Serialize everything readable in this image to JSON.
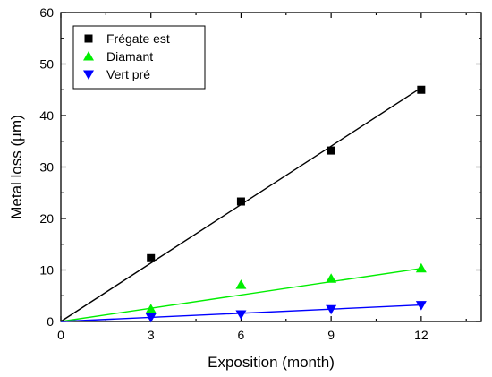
{
  "chart_data": {
    "type": "scatter",
    "title": "",
    "xlabel": "Exposition (month)",
    "ylabel": "Metal loss (µm)",
    "xlim": [
      0,
      14
    ],
    "ylim": [
      0,
      60
    ],
    "xticks": [
      0,
      3,
      6,
      9,
      12
    ],
    "yticks": [
      0,
      10,
      20,
      30,
      40,
      50,
      60
    ],
    "grid": false,
    "legend_position": "top-left",
    "series": [
      {
        "name": "Frégate est",
        "marker": "square",
        "color": "#000000",
        "x": [
          3,
          6,
          9,
          12
        ],
        "y": [
          12.3,
          23.3,
          33.2,
          45.0
        ],
        "fit": {
          "x": [
            0,
            12
          ],
          "y": [
            0,
            45.4
          ]
        }
      },
      {
        "name": "Diamant",
        "marker": "triangle-up",
        "color": "#00ee00",
        "x": [
          3,
          6,
          9,
          12
        ],
        "y": [
          2.4,
          7.1,
          8.3,
          10.3
        ],
        "fit": {
          "x": [
            0,
            12
          ],
          "y": [
            0,
            10.3
          ]
        }
      },
      {
        "name": "Vert pré",
        "marker": "triangle-down",
        "color": "#0000ff",
        "x": [
          3,
          6,
          9,
          12
        ],
        "y": [
          0.8,
          1.4,
          2.4,
          3.2
        ],
        "fit": {
          "x": [
            0,
            12
          ],
          "y": [
            0,
            3.2
          ]
        }
      }
    ]
  }
}
